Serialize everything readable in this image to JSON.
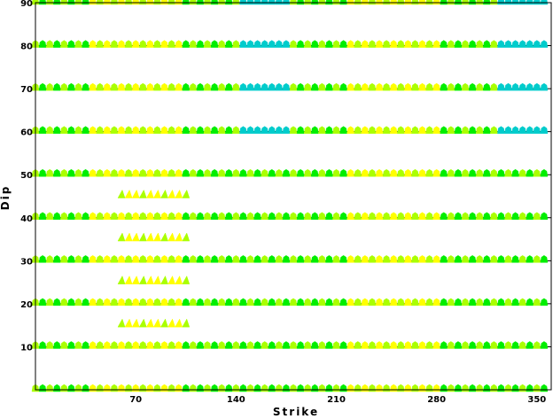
{
  "chart_data": {
    "type": "scatter",
    "title": "",
    "xlabel": "Strike",
    "ylabel": "Dip",
    "xlim": [
      0,
      360
    ],
    "ylim": [
      0,
      90
    ],
    "x_ticks": [
      70,
      140,
      210,
      280,
      350
    ],
    "y_ticks": [
      10,
      20,
      30,
      40,
      50,
      60,
      70,
      80,
      90
    ],
    "grid": "horizontal lines at each dip tick",
    "strike_step": 5,
    "rows": [
      {
        "dip": 0,
        "strike_range": [
          0,
          355
        ]
      },
      {
        "dip": 10,
        "strike_range": [
          0,
          355
        ]
      },
      {
        "dip": 15,
        "strike_range": [
          60,
          105
        ]
      },
      {
        "dip": 20,
        "strike_range": [
          0,
          355
        ]
      },
      {
        "dip": 25,
        "strike_range": [
          60,
          105
        ]
      },
      {
        "dip": 30,
        "strike_range": [
          0,
          355
        ]
      },
      {
        "dip": 35,
        "strike_range": [
          60,
          105
        ]
      },
      {
        "dip": 40,
        "strike_range": [
          0,
          355
        ]
      },
      {
        "dip": 45,
        "strike_range": [
          60,
          105
        ]
      },
      {
        "dip": 50,
        "strike_range": [
          0,
          355
        ]
      },
      {
        "dip": 60,
        "strike_range": [
          0,
          355
        ]
      },
      {
        "dip": 70,
        "strike_range": [
          0,
          355
        ]
      },
      {
        "dip": 80,
        "strike_range": [
          0,
          355
        ]
      },
      {
        "dip": 90,
        "strike_range": [
          0,
          355
        ]
      }
    ],
    "colors": {
      "best_fit": "#ffff00",
      "good_fit": "#aaff00",
      "medium_fit": "#00ee00",
      "poor_fit": "#00cccc",
      "axis": "#000000"
    }
  }
}
